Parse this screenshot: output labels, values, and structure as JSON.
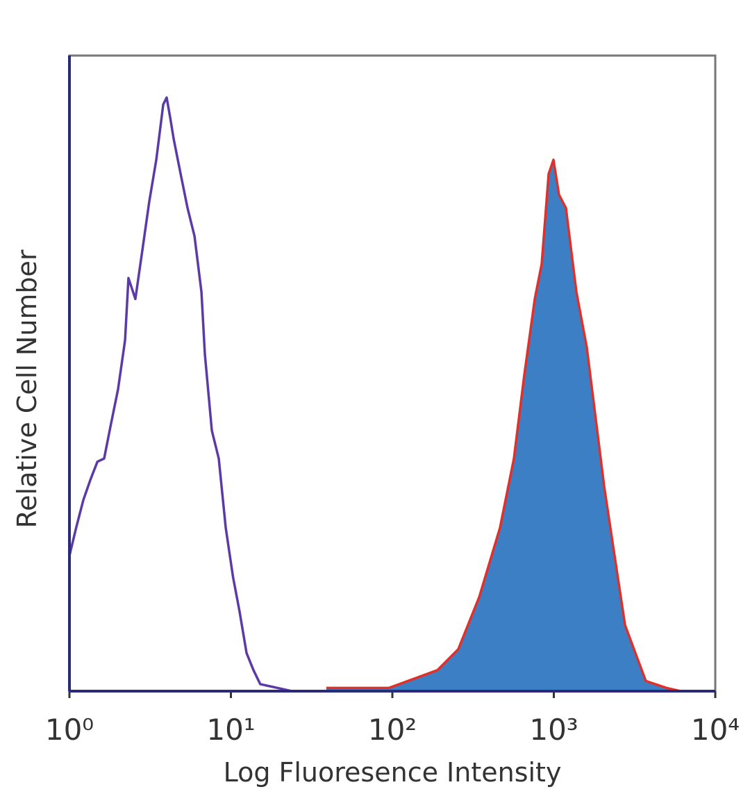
{
  "chart_data": {
    "type": "histogram",
    "x_label": "Log Fluoresence Intensity",
    "y_label": "Relative Cell Number",
    "x_scale": "log",
    "xlim": [
      1,
      10000
    ],
    "ylim": [
      0,
      100
    ],
    "xticks": [
      {
        "value": 1,
        "label": "10⁰"
      },
      {
        "value": 10,
        "label": "10¹"
      },
      {
        "value": 100,
        "label": "10²"
      },
      {
        "value": 1000,
        "label": "10³"
      },
      {
        "value": 10000,
        "label": "10⁴"
      }
    ],
    "series": [
      {
        "color": "#5b3aa8",
        "fill": "none",
        "x": [
          1,
          1.1,
          1.22,
          1.35,
          1.49,
          1.64,
          1.81,
          2.0,
          2.21,
          2.32,
          2.56,
          2.83,
          3.12,
          3.45,
          3.81,
          4.0,
          4.21,
          4.42,
          4.88,
          5.39,
          5.95,
          6.57,
          6.9,
          7.62,
          8.41,
          9.29,
          10.3,
          11.3,
          12.5,
          13.8,
          15.2,
          19.5,
          23.8
        ],
        "values": [
          21.3,
          25.7,
          30.1,
          33.3,
          36.1,
          36.6,
          42.1,
          47.5,
          55.2,
          65.0,
          61.7,
          69.4,
          77.0,
          83.6,
          92.3,
          93.4,
          90.2,
          86.9,
          81.4,
          76.0,
          71.6,
          62.8,
          53.0,
          41.0,
          36.6,
          25.7,
          18.0,
          12.6,
          6.0,
          3.3,
          1.1,
          0.5,
          0
        ]
      },
      {
        "color": "#e0302a",
        "fill": "#3d7fc4",
        "x": [
          39.0,
          95.1,
          190,
          256,
          345,
          464,
          566,
          656,
          762,
          841,
          929,
          995,
          1077,
          1189,
          1380,
          1600,
          1857,
          2051,
          2379,
          2761,
          3201,
          3715,
          5000,
          6095
        ],
        "values": [
          0.5,
          0.5,
          3.3,
          6.6,
          14.8,
          25.7,
          36.6,
          49.7,
          61.7,
          67.2,
          81.4,
          83.6,
          78.1,
          76.0,
          62.8,
          54.1,
          41.0,
          32.2,
          21.3,
          10.4,
          6.0,
          1.6,
          0.5,
          0
        ]
      }
    ]
  }
}
